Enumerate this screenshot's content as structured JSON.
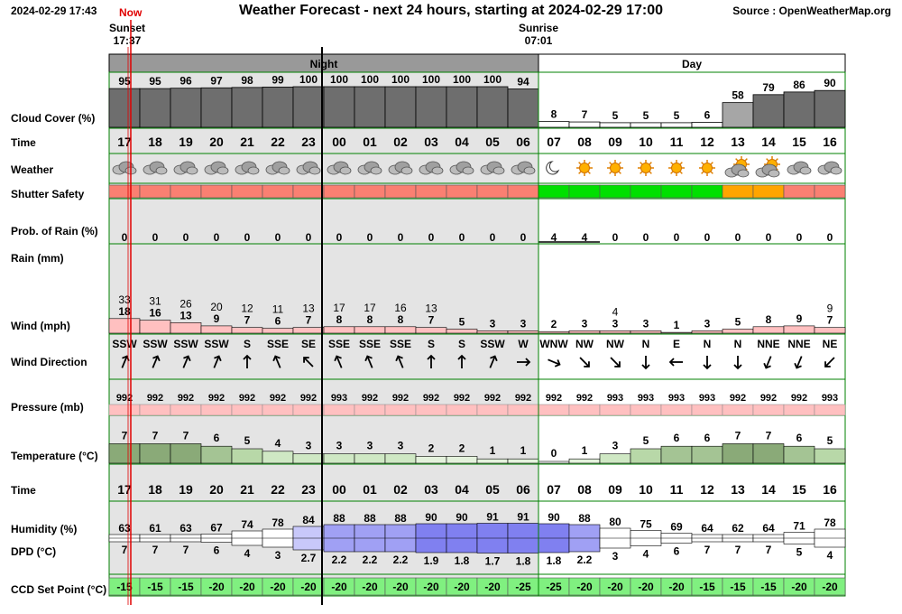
{
  "header": {
    "timestamp": "2024-02-29 17:43",
    "title": "Weather Forecast - next 24 hours, starting at 2024-02-29 17:00",
    "source": "Source : OpenWeatherMap.org",
    "now_label": "Now",
    "sunset_label": "Sunset",
    "sunset_time": "17:37",
    "sunrise_label": "Sunrise",
    "sunrise_time": "07:01",
    "night_label": "Night",
    "day_label": "Day"
  },
  "row_labels": {
    "cloud": "Cloud Cover (%)",
    "time": "Time",
    "weather": "Weather",
    "shutter": "Shutter Safety",
    "rain_prob": "Prob. of Rain (%)",
    "rain": "Rain (mm)",
    "wind": "Wind (mph)",
    "wind_dir": "Wind Direction",
    "pressure": "Pressure (mb)",
    "temperature": "Temperature (°C)",
    "time2": "Time",
    "humidity": "Humidity (%)",
    "dpd": "DPD (°C)",
    "ccd": "CCD Set Point (°C)"
  },
  "colors": {
    "night_bg": "#e4e4e4",
    "header_bg": "#999999",
    "grid_border": "#008000",
    "now_line": "#e00000",
    "cloud_bar": "#6e6e6e",
    "cloud_bar_light": "#a6a6a6",
    "shutter_unsafe": "#fa8072",
    "shutter_safe": "#00e000",
    "shutter_marginal": "#ffa500",
    "wind_bar": "#ffc0c0",
    "pressure_bar": "#ffc0c0",
    "ccd_bg": "#80f080"
  },
  "chart_data": {
    "type": "table",
    "hours": [
      "17",
      "18",
      "19",
      "20",
      "21",
      "22",
      "23",
      "00",
      "01",
      "02",
      "03",
      "04",
      "05",
      "06",
      "07",
      "08",
      "09",
      "10",
      "11",
      "12",
      "13",
      "14",
      "15",
      "16"
    ],
    "cloud_cover": [
      95,
      95,
      96,
      97,
      98,
      99,
      100,
      100,
      100,
      100,
      100,
      100,
      100,
      94,
      8,
      7,
      5,
      5,
      5,
      6,
      58,
      79,
      86,
      90
    ],
    "weather_icons": [
      "cloud-icon",
      "cloud-icon",
      "cloud-icon",
      "cloud-icon",
      "cloud-icon",
      "cloud-icon",
      "cloud-icon",
      "cloud-icon",
      "cloud-icon",
      "cloud-icon",
      "cloud-icon",
      "cloud-icon",
      "cloud-icon",
      "cloud-icon",
      "moon-icon",
      "sun-icon",
      "sun-icon",
      "sun-icon",
      "sun-icon",
      "sun-icon",
      "sun-cloud-icon",
      "sun-cloud-icon",
      "cloud-icon",
      "cloud-icon"
    ],
    "shutter_safety": [
      "unsafe",
      "unsafe",
      "unsafe",
      "unsafe",
      "unsafe",
      "unsafe",
      "unsafe",
      "unsafe",
      "unsafe",
      "unsafe",
      "unsafe",
      "unsafe",
      "unsafe",
      "unsafe",
      "safe",
      "safe",
      "safe",
      "safe",
      "safe",
      "safe",
      "marginal",
      "marginal",
      "unsafe",
      "unsafe"
    ],
    "rain_probability": [
      0,
      0,
      0,
      0,
      0,
      0,
      0,
      0,
      0,
      0,
      0,
      0,
      0,
      0,
      4,
      4,
      0,
      0,
      0,
      0,
      0,
      0,
      0,
      0
    ],
    "wind_gust": [
      "33",
      "31",
      "26",
      "20",
      "12",
      "11",
      "13",
      "17",
      "17",
      "16",
      "13",
      "",
      "",
      "",
      "",
      "",
      "4",
      "",
      "",
      "",
      "",
      "",
      "",
      "9"
    ],
    "wind_speed": [
      18,
      16,
      13,
      9,
      7,
      6,
      7,
      8,
      8,
      8,
      7,
      5,
      3,
      3,
      2,
      3,
      3,
      3,
      1,
      3,
      5,
      8,
      9,
      7
    ],
    "wind_direction": [
      "SSW",
      "SSW",
      "SSW",
      "SSW",
      "S",
      "SSE",
      "SE",
      "SSE",
      "SSE",
      "SSE",
      "S",
      "S",
      "SSW",
      "W",
      "WNW",
      "NW",
      "NW",
      "N",
      "E",
      "N",
      "N",
      "NNE",
      "NNE",
      "NE"
    ],
    "pressure": [
      992,
      992,
      992,
      992,
      992,
      992,
      992,
      993,
      992,
      992,
      992,
      992,
      992,
      992,
      992,
      992,
      993,
      993,
      993,
      993,
      992,
      992,
      992,
      993
    ],
    "temperature": [
      7,
      7,
      7,
      6,
      5,
      4,
      3,
      3,
      3,
      3,
      2,
      2,
      1,
      1,
      0,
      1,
      3,
      5,
      6,
      6,
      7,
      7,
      6,
      5
    ],
    "humidity": [
      63,
      61,
      63,
      67,
      74,
      78,
      84,
      88,
      88,
      88,
      90,
      90,
      91,
      91,
      90,
      88,
      80,
      75,
      69,
      64,
      62,
      64,
      71,
      78
    ],
    "dpd": [
      "7",
      "7",
      "7",
      "6",
      "4",
      "3",
      "2.7",
      "2.2",
      "2.2",
      "2.2",
      "1.9",
      "1.8",
      "1.7",
      "1.8",
      "1.8",
      "2.2",
      "3",
      "4",
      "6",
      "7",
      "7",
      "7",
      "5",
      "4"
    ],
    "ccd_set_point": [
      -15,
      -15,
      -15,
      -20,
      -20,
      -20,
      -20,
      -20,
      -20,
      -20,
      -20,
      -20,
      -20,
      -25,
      -25,
      -20,
      -20,
      -20,
      -20,
      -15,
      -15,
      -15,
      -20,
      -20
    ]
  }
}
